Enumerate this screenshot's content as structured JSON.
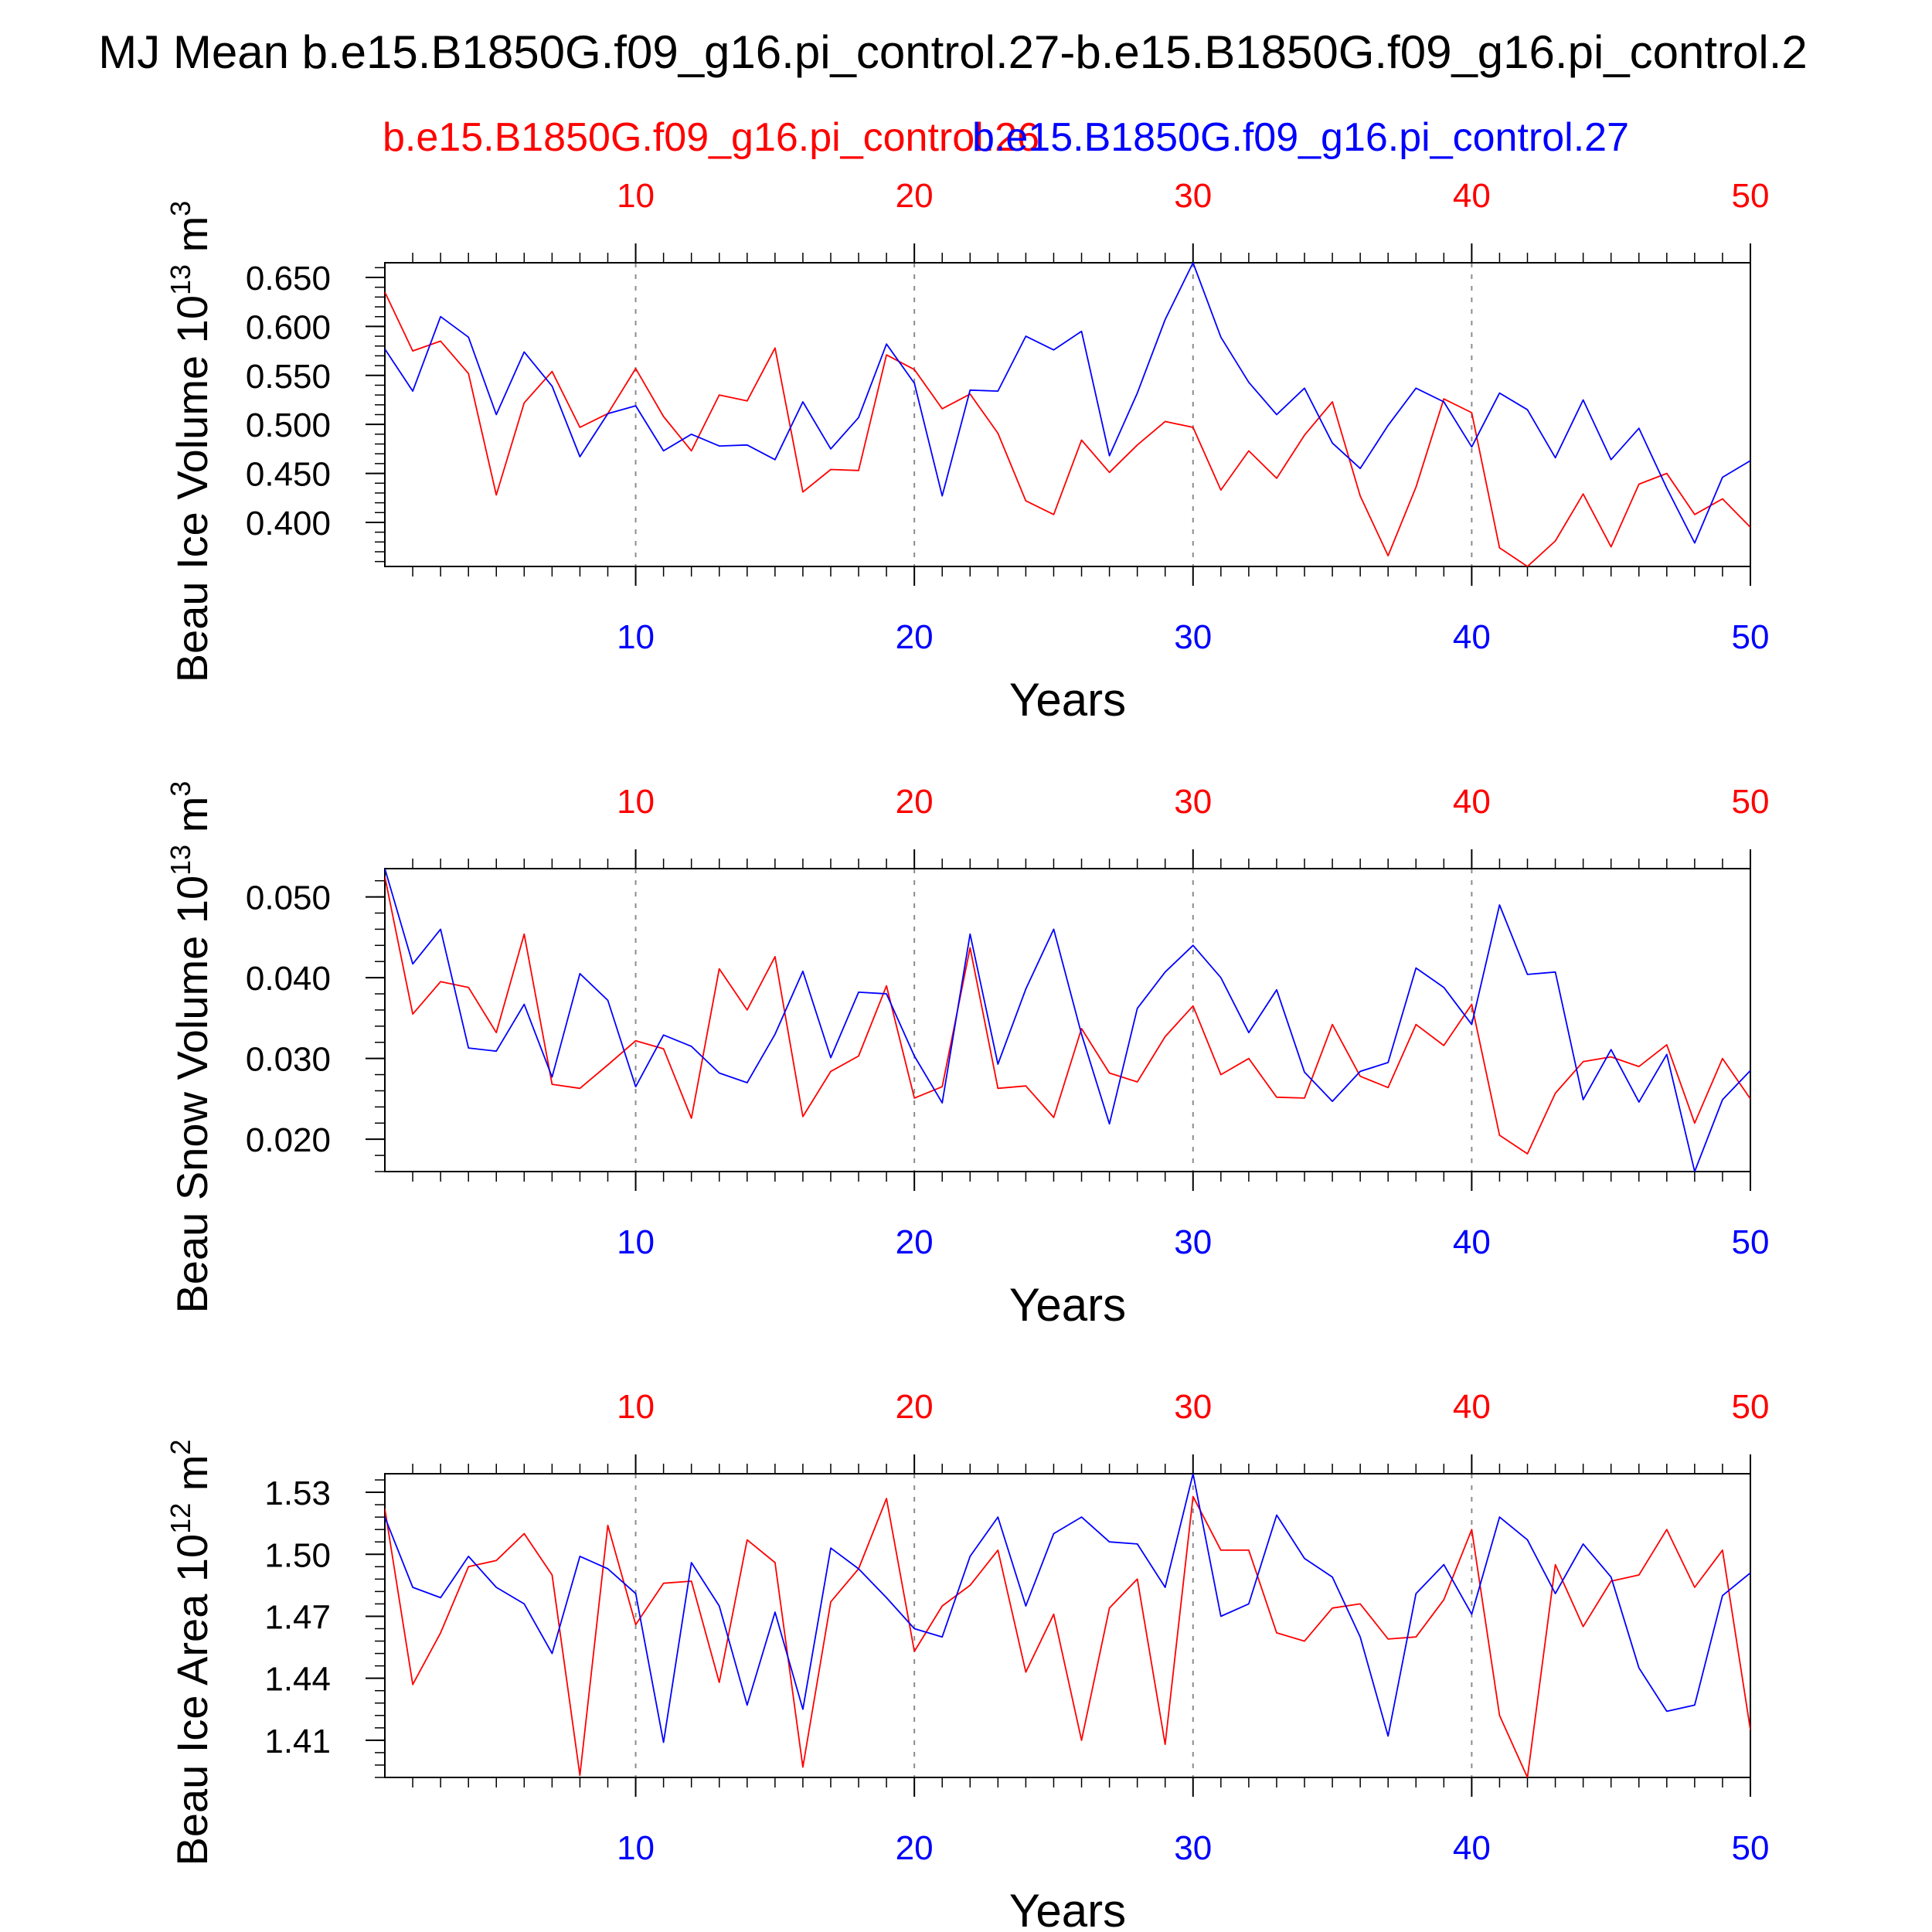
{
  "figure": {
    "title": "MJ Mean b.e15.B1850G.f09_g16.pi_control.27-b.e15.B1850G.f09_g16.pi_control.2",
    "legend_red": "b.e15.B1850G.f09_g16.pi_control.26",
    "legend_blue": "b.e15.B1850G.f09_g16.pi_control.27",
    "colors": {
      "red": "#ff0000",
      "blue": "#0000ff",
      "axis": "#000000",
      "grid": "#8c8c8c"
    }
  },
  "chart_data": [
    {
      "type": "line",
      "ylabel": "Beau Ice Volume 10",
      "ylabel_exp": "13",
      "ylabel_unit": " m",
      "ylabel_unit_exp": "3",
      "xlabel": "Years",
      "xlim": [
        1,
        50
      ],
      "ylim": [
        0.355,
        0.665
      ],
      "yticks": [
        0.4,
        0.45,
        0.5,
        0.55,
        0.6,
        0.65
      ],
      "ytick_labels": [
        "0.400",
        "0.450",
        "0.500",
        "0.550",
        "0.600",
        "0.650"
      ],
      "xticks": [
        10,
        20,
        30,
        40,
        50
      ],
      "xtick_labels": [
        "10",
        "20",
        "30",
        "40",
        "50"
      ],
      "grid_x": true,
      "x": [
        1,
        2,
        3,
        4,
        5,
        6,
        7,
        8,
        9,
        10,
        11,
        12,
        13,
        14,
        15,
        16,
        17,
        18,
        19,
        20,
        21,
        22,
        23,
        24,
        25,
        26,
        27,
        28,
        29,
        30,
        31,
        32,
        33,
        34,
        35,
        36,
        37,
        38,
        39,
        40,
        41,
        42,
        43,
        44,
        45,
        46,
        47,
        48,
        49,
        50
      ],
      "series": [
        {
          "name": "b.e15.B1850G.f09_g16.pi_control.26",
          "color": "#ff0000",
          "values": [
            0.635,
            0.575,
            0.585,
            0.552,
            0.428,
            0.522,
            0.554,
            0.497,
            0.511,
            0.557,
            0.508,
            0.473,
            0.53,
            0.524,
            0.578,
            0.431,
            0.454,
            0.453,
            0.571,
            0.556,
            0.516,
            0.531,
            0.491,
            0.422,
            0.408,
            0.484,
            0.451,
            0.479,
            0.503,
            0.497,
            0.433,
            0.473,
            0.445,
            0.489,
            0.523,
            0.427,
            0.366,
            0.436,
            0.526,
            0.512,
            0.374,
            0.355,
            0.381,
            0.429,
            0.375,
            0.439,
            0.45,
            0.408,
            0.424,
            0.395
          ]
        },
        {
          "name": "b.e15.B1850G.f09_g16.pi_control.27",
          "color": "#0000ff",
          "values": [
            0.577,
            0.534,
            0.61,
            0.589,
            0.51,
            0.574,
            0.539,
            0.467,
            0.511,
            0.519,
            0.473,
            0.49,
            0.478,
            0.479,
            0.464,
            0.523,
            0.475,
            0.507,
            0.582,
            0.542,
            0.427,
            0.535,
            0.534,
            0.59,
            0.576,
            0.595,
            0.468,
            0.532,
            0.607,
            0.665,
            0.589,
            0.543,
            0.51,
            0.537,
            0.481,
            0.455,
            0.499,
            0.537,
            0.523,
            0.477,
            0.532,
            0.515,
            0.466,
            0.525,
            0.464,
            0.496,
            0.435,
            0.379,
            0.446,
            0.463
          ]
        }
      ]
    },
    {
      "type": "line",
      "ylabel": "Beau Snow Volume 10",
      "ylabel_exp": "13",
      "ylabel_unit": " m",
      "ylabel_unit_exp": "3",
      "xlabel": "Years",
      "xlim": [
        1,
        50
      ],
      "ylim": [
        0.016,
        0.0535
      ],
      "yticks": [
        0.02,
        0.03,
        0.04,
        0.05
      ],
      "ytick_labels": [
        "0.020",
        "0.030",
        "0.040",
        "0.050"
      ],
      "xticks": [
        10,
        20,
        30,
        40,
        50
      ],
      "xtick_labels": [
        "10",
        "20",
        "30",
        "40",
        "50"
      ],
      "grid_x": true,
      "x": [
        1,
        2,
        3,
        4,
        5,
        6,
        7,
        8,
        9,
        10,
        11,
        12,
        13,
        14,
        15,
        16,
        17,
        18,
        19,
        20,
        21,
        22,
        23,
        24,
        25,
        26,
        27,
        28,
        29,
        30,
        31,
        32,
        33,
        34,
        35,
        36,
        37,
        38,
        39,
        40,
        41,
        42,
        43,
        44,
        45,
        46,
        47,
        48,
        49,
        50
      ],
      "series": [
        {
          "name": "b.e15.B1850G.f09_g16.pi_control.26",
          "color": "#ff0000",
          "values": [
            0.0525,
            0.0355,
            0.0395,
            0.0388,
            0.0332,
            0.0454,
            0.0268,
            0.0263,
            0.0292,
            0.0322,
            0.0312,
            0.0226,
            0.0411,
            0.036,
            0.0426,
            0.0228,
            0.0284,
            0.0303,
            0.039,
            0.0251,
            0.0265,
            0.0437,
            0.0263,
            0.0266,
            0.0227,
            0.0337,
            0.0282,
            0.0271,
            0.0327,
            0.0365,
            0.028,
            0.03,
            0.0252,
            0.0251,
            0.0342,
            0.0278,
            0.0264,
            0.0342,
            0.0316,
            0.0367,
            0.0205,
            0.0182,
            0.0257,
            0.0296,
            0.0302,
            0.029,
            0.0317,
            0.022,
            0.03,
            0.025
          ]
        },
        {
          "name": "b.e15.B1850G.f09_g16.pi_control.27",
          "color": "#0000ff",
          "values": [
            0.0535,
            0.0417,
            0.046,
            0.0313,
            0.0309,
            0.0367,
            0.0277,
            0.0405,
            0.0372,
            0.0265,
            0.0329,
            0.0315,
            0.0282,
            0.027,
            0.033,
            0.0408,
            0.0301,
            0.0382,
            0.038,
            0.0303,
            0.0245,
            0.0454,
            0.0293,
            0.0386,
            0.046,
            0.033,
            0.0219,
            0.0362,
            0.0407,
            0.044,
            0.04,
            0.0332,
            0.0385,
            0.0283,
            0.0247,
            0.0284,
            0.0295,
            0.0412,
            0.0388,
            0.0342,
            0.049,
            0.0404,
            0.0407,
            0.0249,
            0.0311,
            0.0246,
            0.0305,
            0.016,
            0.0249,
            0.0285
          ]
        }
      ]
    },
    {
      "type": "line",
      "ylabel": "Beau Ice Area 10",
      "ylabel_exp": "12",
      "ylabel_unit": " m",
      "ylabel_unit_exp": "2",
      "xlabel": "Years",
      "xlim": [
        1,
        50
      ],
      "ylim": [
        1.392,
        1.539
      ],
      "yticks": [
        1.41,
        1.44,
        1.47,
        1.5,
        1.53
      ],
      "ytick_labels": [
        "1.41",
        "1.44",
        "1.47",
        "1.50",
        "1.53"
      ],
      "xticks": [
        10,
        20,
        30,
        40,
        50
      ],
      "xtick_labels": [
        "10",
        "20",
        "30",
        "40",
        "50"
      ],
      "grid_x": true,
      "x": [
        1,
        2,
        3,
        4,
        5,
        6,
        7,
        8,
        9,
        10,
        11,
        12,
        13,
        14,
        15,
        16,
        17,
        18,
        19,
        20,
        21,
        22,
        23,
        24,
        25,
        26,
        27,
        28,
        29,
        30,
        31,
        32,
        33,
        34,
        35,
        36,
        37,
        38,
        39,
        40,
        41,
        42,
        43,
        44,
        45,
        46,
        47,
        48,
        49,
        50
      ],
      "series": [
        {
          "name": "b.e15.B1850G.f09_g16.pi_control.26",
          "color": "#ff0000",
          "values": [
            1.522,
            1.437,
            1.462,
            1.494,
            1.497,
            1.51,
            1.49,
            1.393,
            1.514,
            1.466,
            1.486,
            1.487,
            1.438,
            1.507,
            1.496,
            1.397,
            1.477,
            1.493,
            1.527,
            1.453,
            1.475,
            1.485,
            1.502,
            1.443,
            1.471,
            1.41,
            1.474,
            1.488,
            1.408,
            1.528,
            1.502,
            1.502,
            1.462,
            1.458,
            1.474,
            1.476,
            1.459,
            1.46,
            1.478,
            1.512,
            1.422,
            1.392,
            1.495,
            1.465,
            1.487,
            1.49,
            1.512,
            1.484,
            1.502,
            1.415
          ]
        },
        {
          "name": "b.e15.B1850G.f09_g16.pi_control.27",
          "color": "#0000ff",
          "values": [
            1.518,
            1.484,
            1.479,
            1.499,
            1.484,
            1.476,
            1.452,
            1.499,
            1.493,
            1.481,
            1.409,
            1.496,
            1.475,
            1.427,
            1.472,
            1.425,
            1.503,
            1.493,
            1.479,
            1.464,
            1.46,
            1.499,
            1.518,
            1.475,
            1.51,
            1.518,
            1.506,
            1.505,
            1.484,
            1.539,
            1.47,
            1.476,
            1.519,
            1.498,
            1.489,
            1.46,
            1.412,
            1.481,
            1.495,
            1.471,
            1.518,
            1.507,
            1.481,
            1.505,
            1.489,
            1.445,
            1.424,
            1.427,
            1.48,
            1.491
          ]
        }
      ]
    }
  ]
}
